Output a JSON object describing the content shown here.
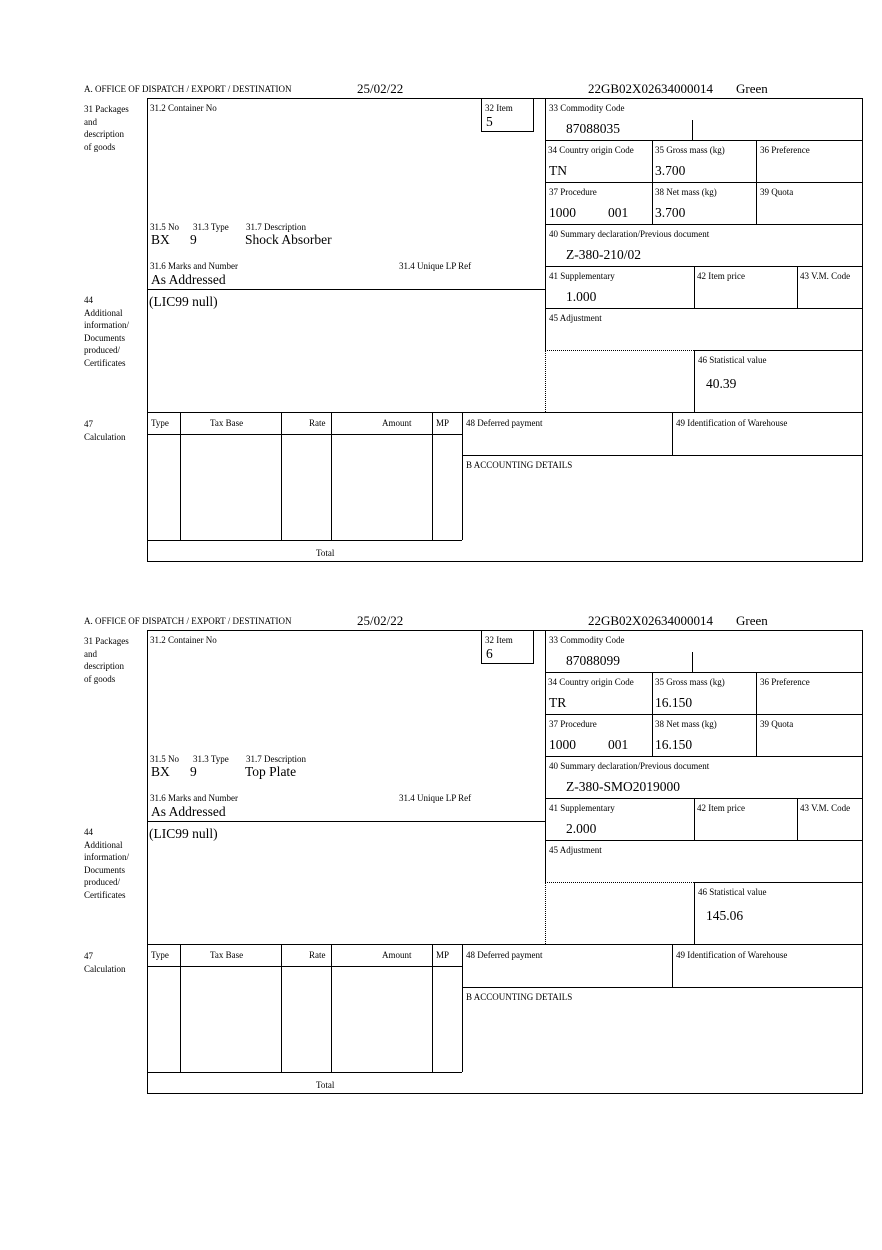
{
  "labels": {
    "office": "A. OFFICE OF DISPATCH / EXPORT / DESTINATION",
    "packages": [
      "31 Packages",
      "and",
      "description",
      "of goods"
    ],
    "container_no": "31.2 Container No",
    "item": "32 Item",
    "no": "31.5 No",
    "type": "31.3 Type",
    "description": "31.7 Description",
    "marks": "31.6 Marks and Number",
    "unique_lp": "31.4 Unique LP Ref",
    "commodity_code": "33 Commodity Code",
    "country_origin": "34 Country origin Code",
    "gross_mass": "35 Gross mass (kg)",
    "preference": "36 Preference",
    "procedure": "37 Procedure",
    "net_mass": "38 Net mass (kg)",
    "quota": "39 Quota",
    "summary_decl": "40 Summary declaration/Previous document",
    "supplementary": "41 Supplementary",
    "item_price": "42 Item price",
    "vm_code": "43 V.M. Code",
    "additional": [
      "44",
      "Additional",
      "information/",
      "Documents",
      "produced/",
      "Certificates"
    ],
    "adjustment": "45 Adjustment",
    "statistical_value": "46 Statistical value",
    "calculation": [
      "47",
      "Calculation"
    ],
    "calc_columns": [
      "Type",
      "Tax Base",
      "Rate",
      "Amount",
      "MP"
    ],
    "total": "Total",
    "deferred_payment": "48 Deferred payment",
    "warehouse": "49 Identification of Warehouse",
    "accounting": "B ACCOUNTING DETAILS"
  },
  "forms": [
    {
      "date": "25/02/22",
      "reference": "22GB02X02634000014",
      "route": "Green",
      "item": "5",
      "no": "BX",
      "type": "9",
      "description": "Shock Absorber",
      "marks": "As Addressed",
      "commodity_code": "87088035",
      "country_origin": "TN",
      "gross_mass": "3.700",
      "procedure": "1000",
      "procedure_additional": "001",
      "net_mass": "3.700",
      "summary_decl": "Z-380-210/02",
      "supplementary": "1.000",
      "additional": "(LIC99 null)",
      "statistical_value": "40.39"
    },
    {
      "date": "25/02/22",
      "reference": "22GB02X02634000014",
      "route": "Green",
      "item": "6",
      "no": "BX",
      "type": "9",
      "description": "Top Plate",
      "marks": "As Addressed",
      "commodity_code": "87088099",
      "country_origin": "TR",
      "gross_mass": "16.150",
      "procedure": "1000",
      "procedure_additional": "001",
      "net_mass": "16.150",
      "summary_decl": "Z-380-SMO2019000",
      "supplementary": "2.000",
      "additional": "(LIC99 null)",
      "statistical_value": "145.06"
    }
  ]
}
